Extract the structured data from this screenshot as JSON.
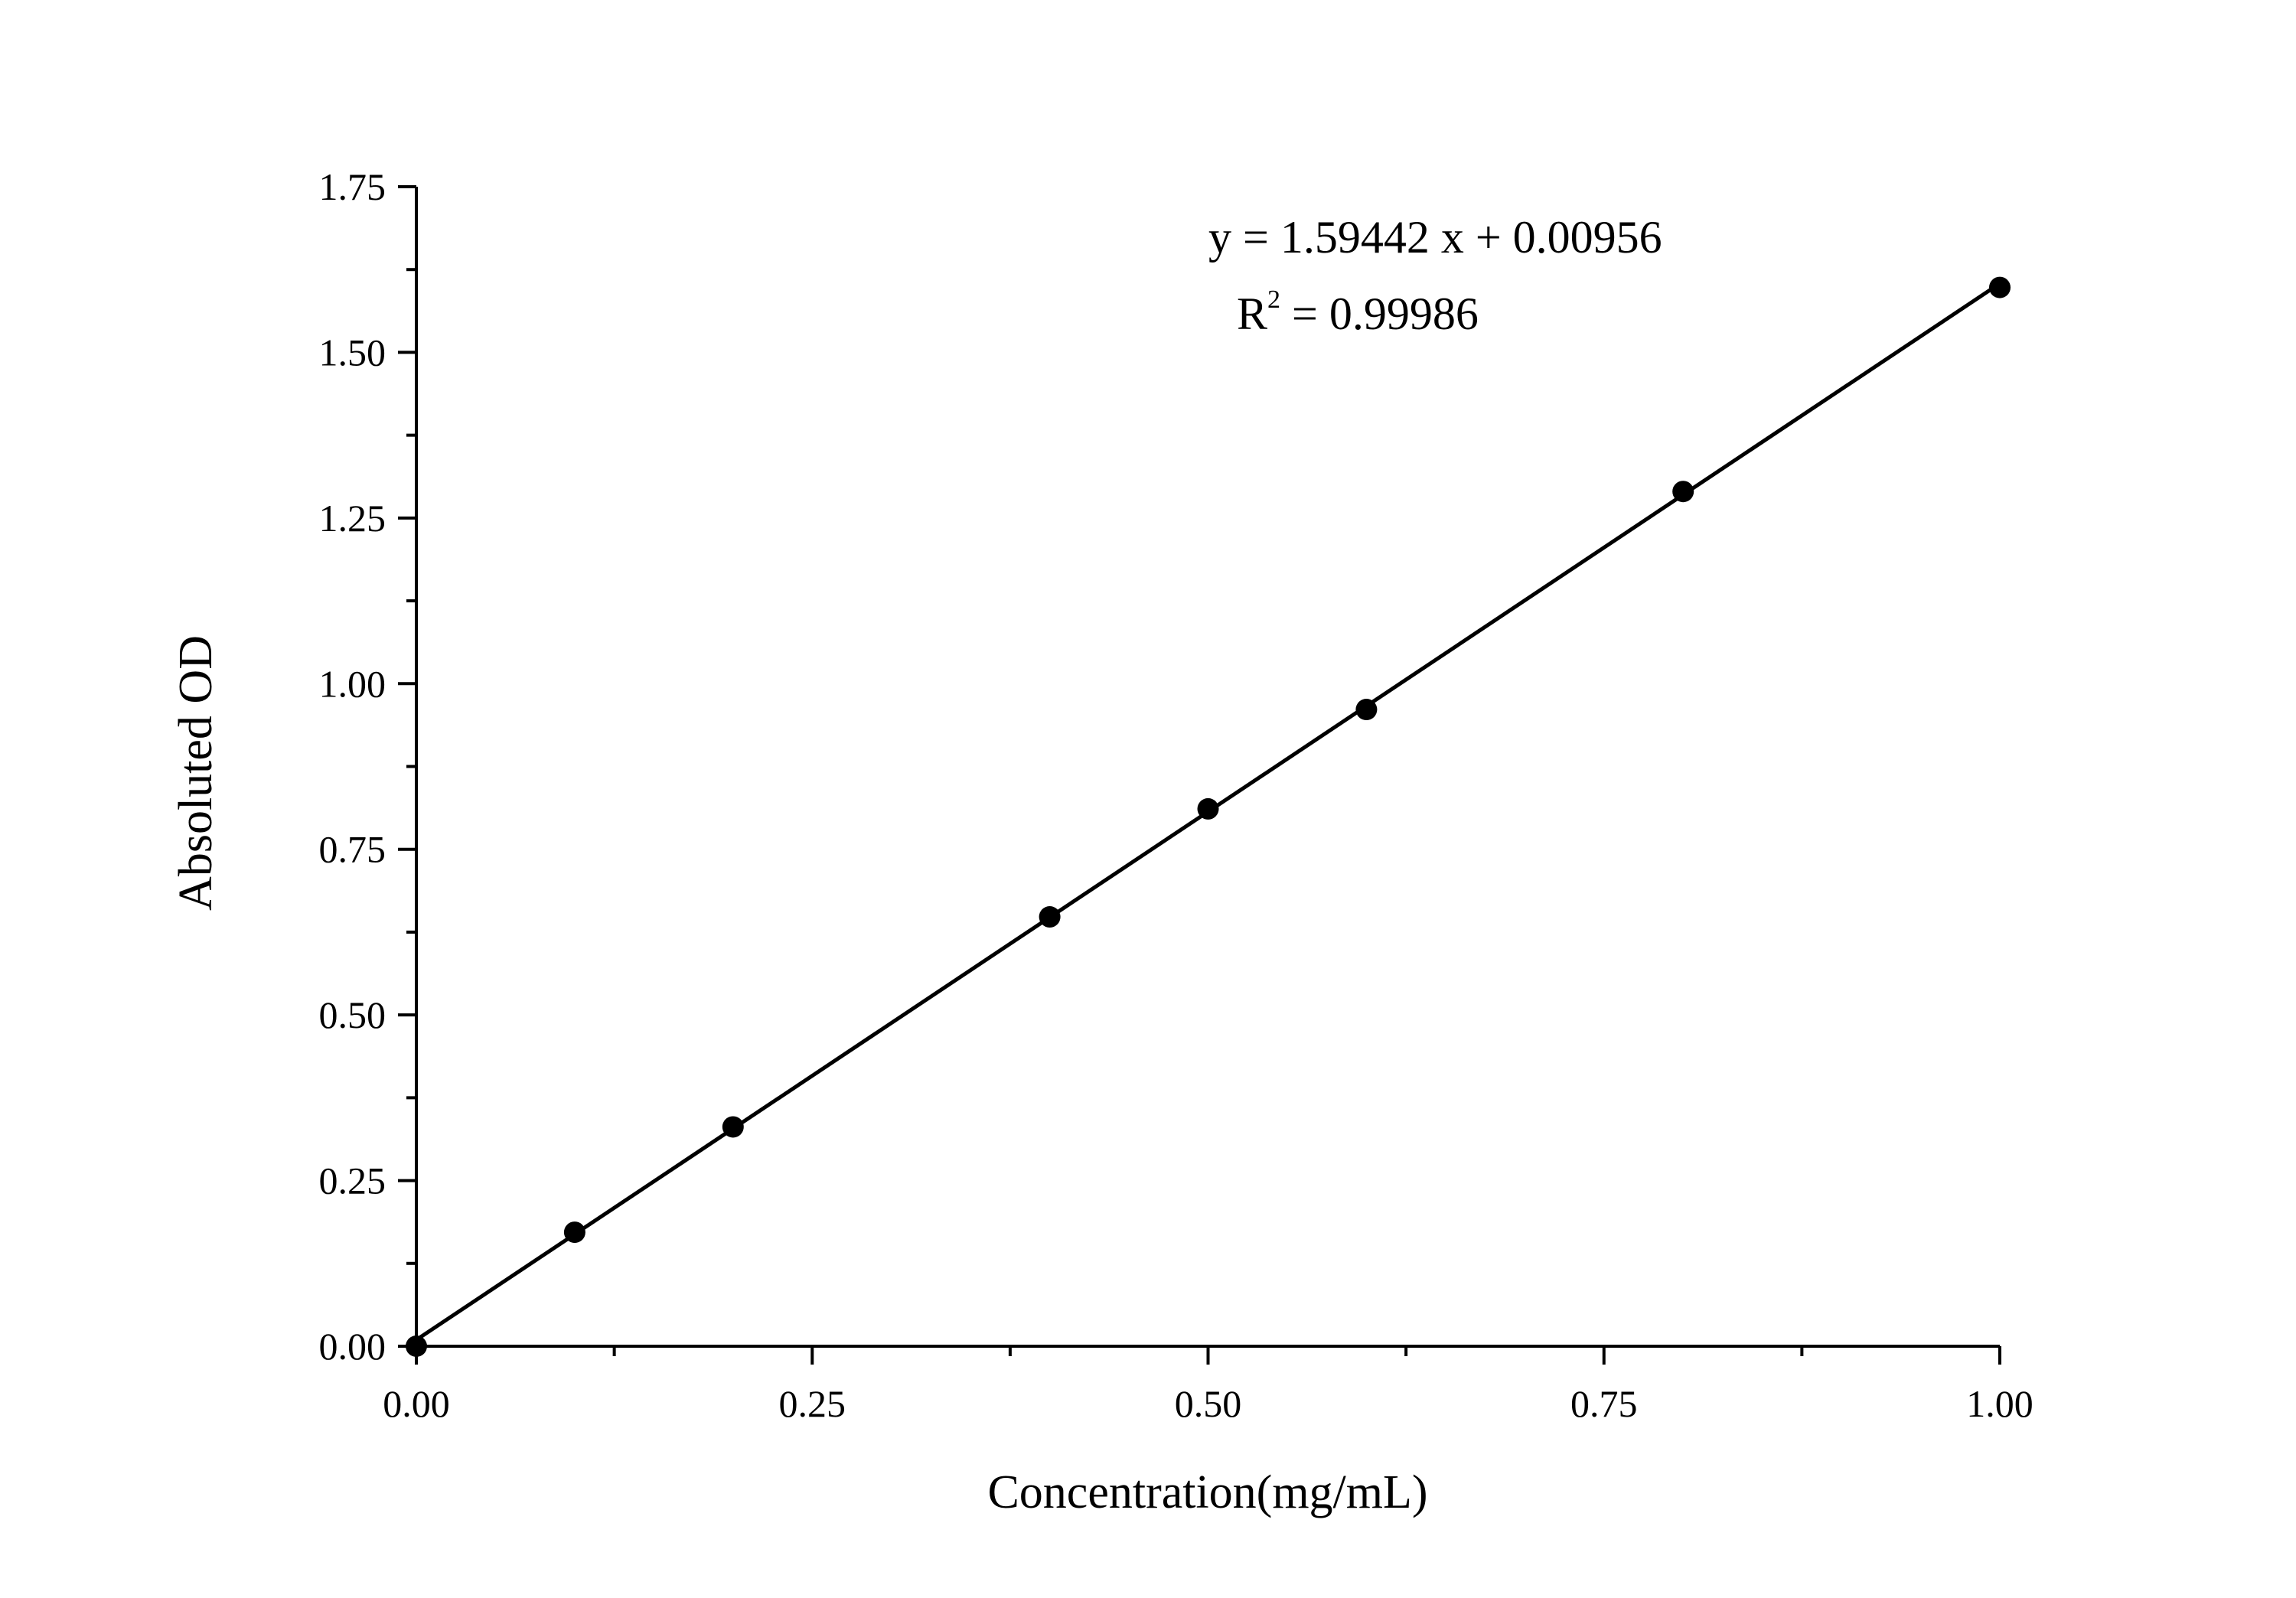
{
  "chart_data": {
    "type": "scatter",
    "title": "",
    "xlabel": "Concentration(mg/mL)",
    "ylabel": "Absoluted OD",
    "xlim": [
      0,
      1.0
    ],
    "ylim": [
      0,
      1.75
    ],
    "x_ticks": [
      "0.00",
      "0.25",
      "0.50",
      "0.75",
      "1.00"
    ],
    "y_ticks": [
      "0.00",
      "0.25",
      "0.50",
      "0.75",
      "1.00",
      "1.25",
      "1.50",
      "1.75"
    ],
    "x_minor_step": 0.125,
    "y_minor_step": 0.125,
    "grid": false,
    "marker_color": "#000000",
    "line_color": "#000000",
    "points": {
      "x": [
        0,
        0.1,
        0.2,
        0.4,
        0.5,
        0.6,
        0.8,
        1.0
      ],
      "y": [
        0.0,
        0.172,
        0.331,
        0.648,
        0.811,
        0.961,
        1.29,
        1.598
      ]
    },
    "fit": {
      "slope": 1.59442,
      "intercept": 0.00956,
      "equation": "y = 1.59442 x + 0.00956",
      "r2_label": "R",
      "r2_sup": "2",
      "r2_value": " = 0.99986"
    }
  }
}
